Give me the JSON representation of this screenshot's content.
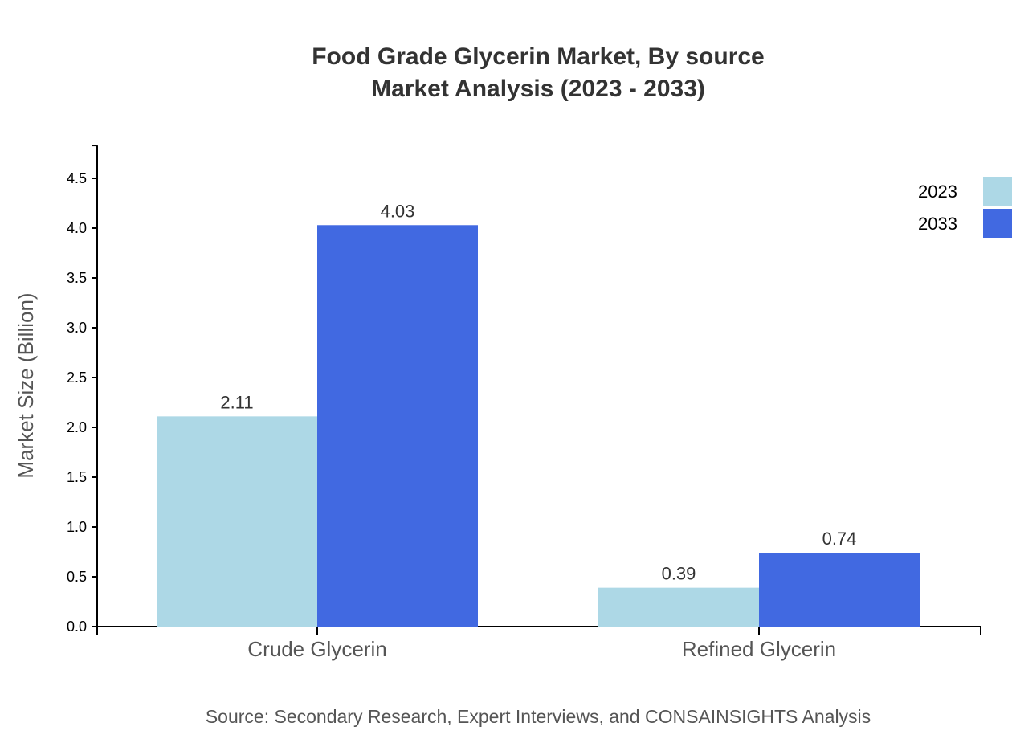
{
  "chart_data": {
    "type": "bar",
    "title": "Food Grade Glycerin Market, By source",
    "subtitle": "Market Analysis (2023 - 2033)",
    "xlabel": "",
    "ylabel": "Market Size (Billion)",
    "categories": [
      "Crude Glycerin",
      "Refined Glycerin"
    ],
    "series": [
      {
        "name": "2023",
        "values": [
          2.11,
          0.39
        ],
        "color": "#ADD8E6"
      },
      {
        "name": "2033",
        "values": [
          4.03,
          0.74
        ],
        "color": "#4169E1"
      }
    ],
    "ylim": [
      0,
      4.83
    ],
    "yticks": [
      "0.0",
      "0.5",
      "1.0",
      "1.5",
      "2.0",
      "2.5",
      "3.0",
      "3.5",
      "4.0",
      "4.5"
    ],
    "grid": false,
    "legend": "top-right",
    "source": "Source: Secondary Research, Expert Interviews, and CONSAINSIGHTS Analysis"
  }
}
